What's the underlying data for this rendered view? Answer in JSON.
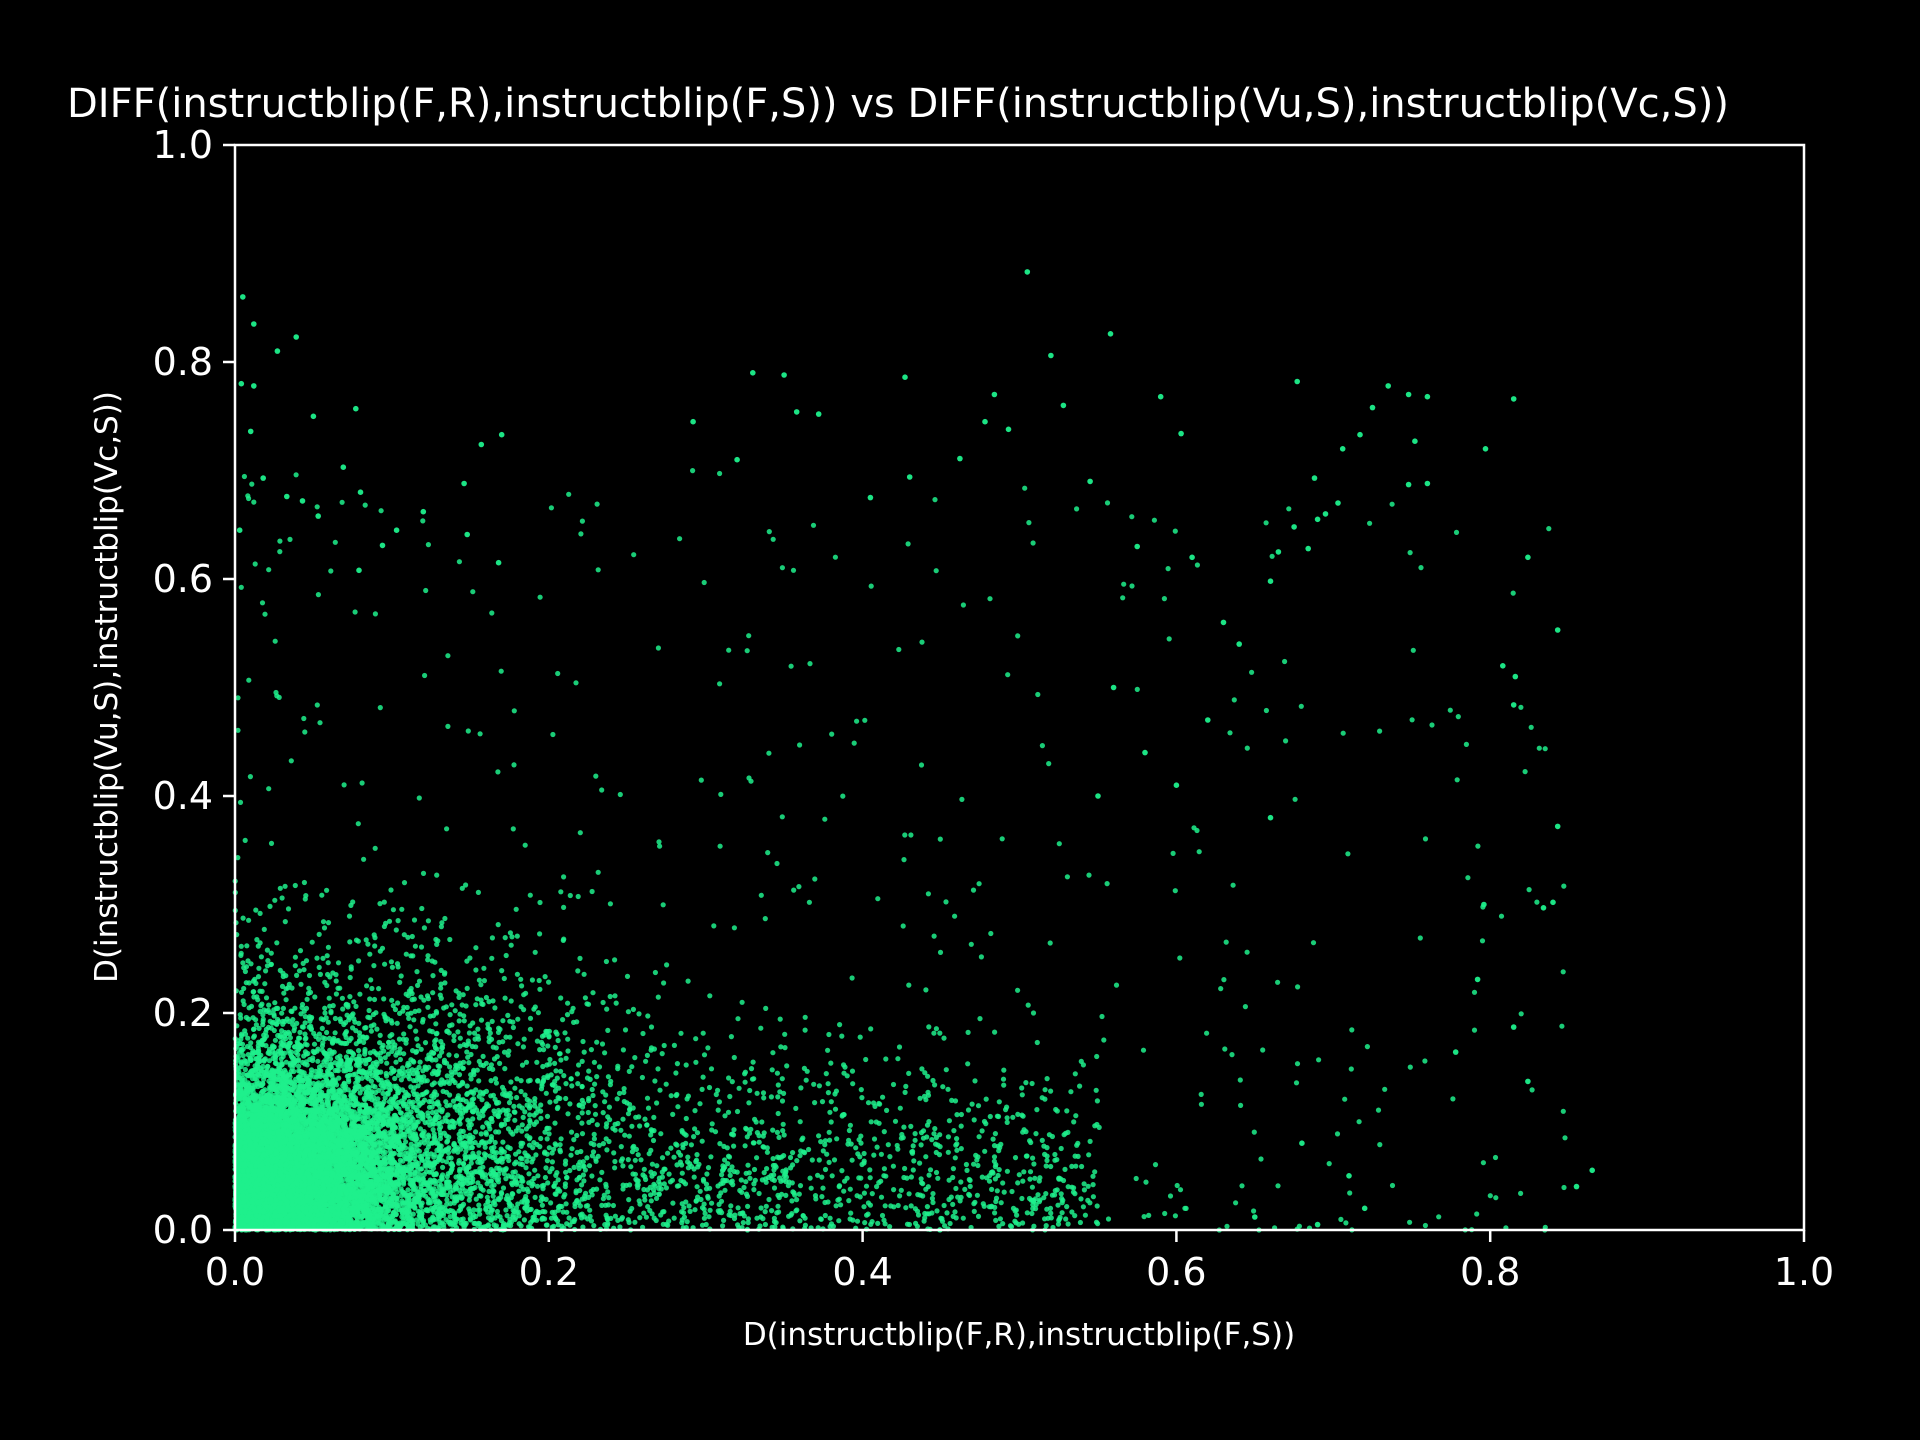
{
  "chart_data": {
    "type": "scatter",
    "title": "DIFF(instructblip(F,R),instructblip(F,S)) vs DIFF(instructblip(Vu,S),instructblip(Vc,S))",
    "xlabel": "D(instructblip(F,R),instructblip(F,S))",
    "ylabel": "D(instructblip(Vu,S),instructblip(Vc,S))",
    "xlim": [
      0,
      1
    ],
    "ylim": [
      0,
      1
    ],
    "x_ticks": [
      "0.0",
      "0.2",
      "0.4",
      "0.6",
      "0.8",
      "1.0"
    ],
    "y_ticks": [
      "0.0",
      "0.2",
      "0.4",
      "0.6",
      "0.8",
      "1.0"
    ],
    "grid": false,
    "legend": "none",
    "colors": {
      "background": "#000000",
      "points": "#1ef08c",
      "axes": "#ffffff"
    },
    "series": [
      {
        "points": [
          [
            0.005,
            0.86
          ],
          [
            0.012,
            0.835
          ],
          [
            0.039,
            0.823
          ],
          [
            0.027,
            0.81
          ],
          [
            0.004,
            0.78
          ],
          [
            0.012,
            0.778
          ],
          [
            0.077,
            0.757
          ],
          [
            0.05,
            0.75
          ],
          [
            0.17,
            0.733
          ],
          [
            0.01,
            0.736
          ],
          [
            0.157,
            0.724
          ],
          [
            0.069,
            0.703
          ],
          [
            0.018,
            0.693
          ],
          [
            0.08,
            0.68
          ],
          [
            0.033,
            0.676
          ],
          [
            0.146,
            0.688
          ],
          [
            0.043,
            0.672
          ],
          [
            0.003,
            0.645
          ],
          [
            0.053,
            0.658
          ],
          [
            0.12,
            0.662
          ],
          [
            0.103,
            0.645
          ],
          [
            0.148,
            0.641
          ],
          [
            0.094,
            0.631
          ],
          [
            0.168,
            0.615
          ],
          [
            0.079,
            0.608
          ],
          [
            0.505,
            0.883
          ],
          [
            0.558,
            0.826
          ],
          [
            0.52,
            0.806
          ],
          [
            0.33,
            0.79
          ],
          [
            0.35,
            0.788
          ],
          [
            0.427,
            0.786
          ],
          [
            0.484,
            0.77
          ],
          [
            0.59,
            0.768
          ],
          [
            0.528,
            0.76
          ],
          [
            0.358,
            0.754
          ],
          [
            0.372,
            0.752
          ],
          [
            0.478,
            0.745
          ],
          [
            0.603,
            0.734
          ],
          [
            0.292,
            0.745
          ],
          [
            0.493,
            0.738
          ],
          [
            0.32,
            0.71
          ],
          [
            0.545,
            0.69
          ],
          [
            0.43,
            0.694
          ],
          [
            0.405,
            0.675
          ],
          [
            0.462,
            0.711
          ],
          [
            0.677,
            0.782
          ],
          [
            0.735,
            0.778
          ],
          [
            0.748,
            0.77
          ],
          [
            0.76,
            0.768
          ],
          [
            0.815,
            0.766
          ],
          [
            0.725,
            0.758
          ],
          [
            0.717,
            0.733
          ],
          [
            0.752,
            0.727
          ],
          [
            0.797,
            0.72
          ],
          [
            0.706,
            0.72
          ],
          [
            0.688,
            0.693
          ],
          [
            0.748,
            0.687
          ],
          [
            0.76,
            0.688
          ],
          [
            0.703,
            0.67
          ],
          [
            0.695,
            0.66
          ],
          [
            0.69,
            0.655
          ],
          [
            0.675,
            0.648
          ],
          [
            0.665,
            0.625
          ],
          [
            0.684,
            0.628
          ],
          [
            0.66,
            0.598
          ],
          [
            0.824,
            0.62
          ],
          [
            0.843,
            0.553
          ],
          [
            0.808,
            0.52
          ],
          [
            0.816,
            0.51
          ],
          [
            0.815,
            0.484
          ],
          [
            0.843,
            0.372
          ],
          [
            0.84,
            0.302
          ],
          [
            0.834,
            0.297
          ],
          [
            0.815,
            0.187
          ],
          [
            0.824,
            0.137
          ],
          [
            0.865,
            0.055
          ],
          [
            0.855,
            0.04
          ],
          [
            0.796,
            0.3
          ],
          [
            0.792,
            0.231
          ],
          [
            0.778,
            0.164
          ],
          [
            0.72,
            0.02
          ],
          [
            0.71,
            0.05
          ],
          [
            0.68,
            0.08
          ],
          [
            0.65,
            0.012
          ],
          [
            0.69,
            0.005
          ],
          [
            0.575,
            0.63
          ],
          [
            0.61,
            0.62
          ],
          [
            0.63,
            0.56
          ],
          [
            0.64,
            0.54
          ],
          [
            0.56,
            0.5
          ],
          [
            0.62,
            0.47
          ],
          [
            0.58,
            0.44
          ],
          [
            0.6,
            0.41
          ],
          [
            0.55,
            0.4
          ],
          [
            0.66,
            0.38
          ]
        ]
      }
    ],
    "cluster_model": {
      "description": "dense cloud near origin, thinning toward upper right",
      "count": 12000
    }
  }
}
